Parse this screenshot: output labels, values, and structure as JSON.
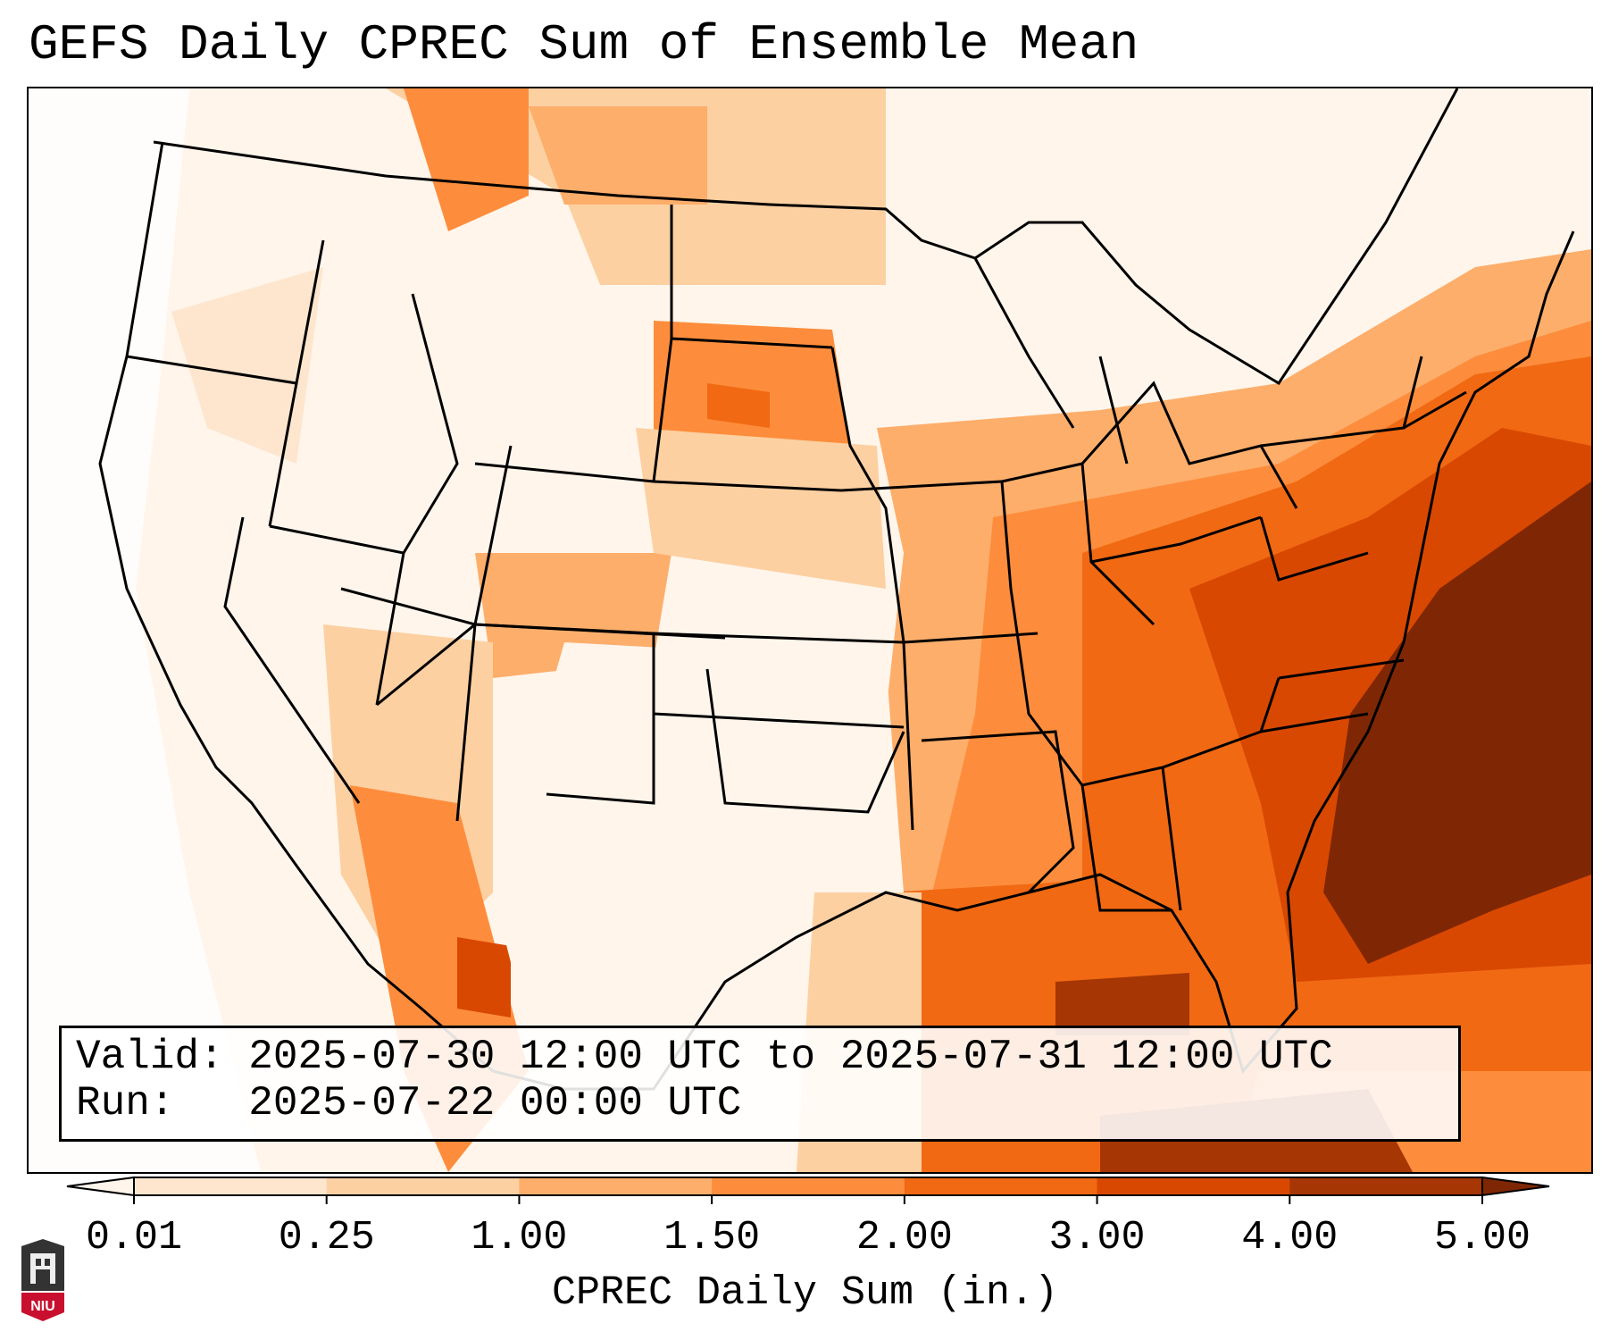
{
  "title": "GEFS Daily CPREC Sum of Ensemble Mean",
  "info": {
    "valid_label": "Valid:",
    "valid_value": "2025-07-30 12:00 UTC to 2025-07-31 12:00 UTC",
    "run_label": "Run:",
    "run_value": "2025-07-22 00:00 UTC"
  },
  "colorbar": {
    "title": "CPREC Daily Sum (in.)",
    "ticks": [
      "0.01",
      "0.25",
      "1.00",
      "1.50",
      "2.00",
      "3.00",
      "4.00",
      "5.00"
    ],
    "colors": [
      "#fff5eb",
      "#fee6ce",
      "#fdd0a2",
      "#fdae6b",
      "#fd8d3c",
      "#f16913",
      "#d94801",
      "#a63603",
      "#7f2704"
    ]
  },
  "logo": {
    "text": "NIU",
    "color": "#c8102e"
  }
}
